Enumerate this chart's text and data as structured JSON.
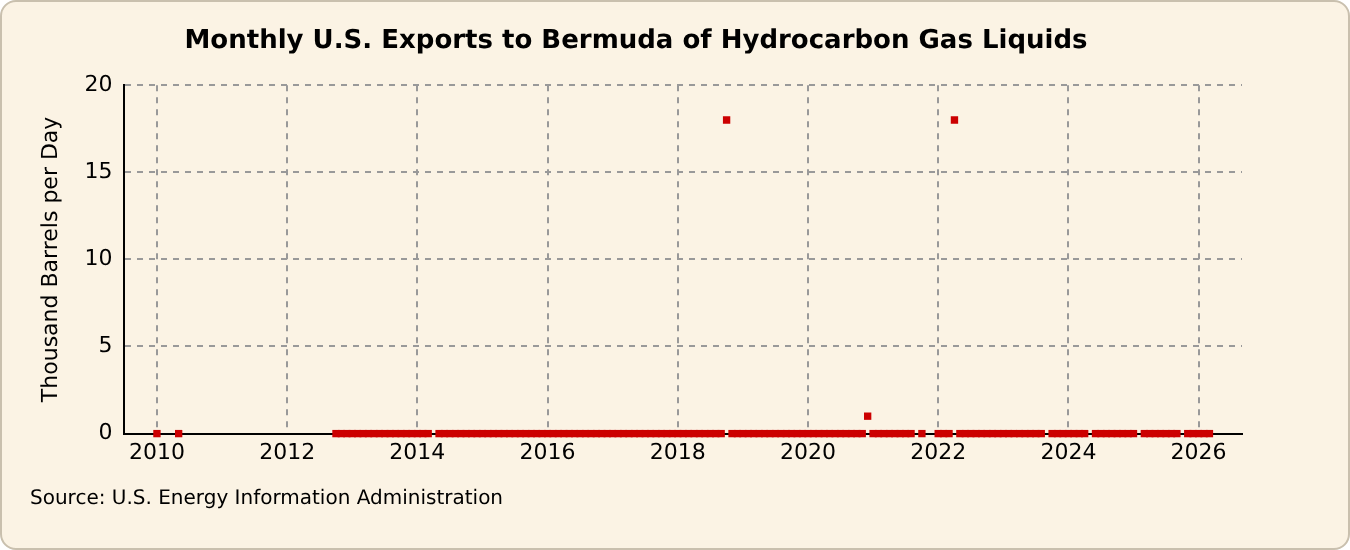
{
  "chart_data": {
    "type": "scatter",
    "title": "Monthly U.S. Exports to Bermuda of Hydrocarbon Gas Liquids",
    "ylabel": "Thousand Barrels per Day",
    "annotations": [
      "Source: U.S. Energy Information Administration"
    ],
    "xlim": [
      "2009-07",
      "2026-09"
    ],
    "xticks": [
      "2010",
      "2012",
      "2014",
      "2016",
      "2018",
      "2020",
      "2022",
      "2024",
      "2026"
    ],
    "ylim": [
      0,
      20
    ],
    "yticks": [
      0,
      5,
      10,
      15,
      20
    ],
    "grid": true,
    "legend": false,
    "marker": "square",
    "series": [
      {
        "color": "#cc0000",
        "x": [
          "2010-01",
          "2010-05",
          "2012-10",
          "2012-11",
          "2012-12",
          "2013-01",
          "2013-02",
          "2013-03",
          "2013-04",
          "2013-05",
          "2013-06",
          "2013-07",
          "2013-08",
          "2013-09",
          "2013-10",
          "2013-11",
          "2013-12",
          "2014-01",
          "2014-02",
          "2014-03",
          "2014-05",
          "2014-06",
          "2014-07",
          "2014-08",
          "2014-09",
          "2014-10",
          "2014-11",
          "2014-12",
          "2015-01",
          "2015-02",
          "2015-03",
          "2015-04",
          "2015-05",
          "2015-06",
          "2015-07",
          "2015-08",
          "2015-09",
          "2015-10",
          "2015-11",
          "2015-12",
          "2016-01",
          "2016-02",
          "2016-03",
          "2016-04",
          "2016-05",
          "2016-06",
          "2016-07",
          "2016-08",
          "2016-09",
          "2016-10",
          "2016-11",
          "2016-12",
          "2017-01",
          "2017-02",
          "2017-03",
          "2017-04",
          "2017-05",
          "2017-06",
          "2017-07",
          "2017-08",
          "2017-09",
          "2017-10",
          "2017-11",
          "2017-12",
          "2018-01",
          "2018-02",
          "2018-03",
          "2018-04",
          "2018-05",
          "2018-06",
          "2018-07",
          "2018-08",
          "2018-09",
          "2018-10",
          "2018-11",
          "2018-12",
          "2019-01",
          "2019-02",
          "2019-03",
          "2019-04",
          "2019-05",
          "2019-06",
          "2019-07",
          "2019-08",
          "2019-09",
          "2019-10",
          "2019-11",
          "2019-12",
          "2020-01",
          "2020-02",
          "2020-03",
          "2020-04",
          "2020-05",
          "2020-06",
          "2020-07",
          "2020-08",
          "2020-09",
          "2020-10",
          "2020-11",
          "2020-12",
          "2021-01",
          "2021-02",
          "2021-03",
          "2021-04",
          "2021-05",
          "2021-06",
          "2021-07",
          "2021-08",
          "2021-10",
          "2022-01",
          "2022-02",
          "2022-03",
          "2022-04",
          "2022-05",
          "2022-06",
          "2022-07",
          "2022-08",
          "2022-09",
          "2022-10",
          "2022-11",
          "2022-12",
          "2023-01",
          "2023-02",
          "2023-03",
          "2023-04",
          "2023-05",
          "2023-06",
          "2023-07",
          "2023-08",
          "2023-10",
          "2023-11",
          "2023-12",
          "2024-01",
          "2024-02",
          "2024-03",
          "2024-04",
          "2024-06",
          "2024-07",
          "2024-08",
          "2024-09",
          "2024-10",
          "2024-11",
          "2024-12",
          "2025-01",
          "2025-03",
          "2025-04",
          "2025-05",
          "2025-06",
          "2025-07",
          "2025-08",
          "2025-09",
          "2025-11",
          "2025-12",
          "2026-01",
          "2026-02",
          "2026-03"
        ],
        "values": [
          0,
          0,
          0,
          0,
          0,
          0,
          0,
          0,
          0,
          0,
          0,
          0,
          0,
          0,
          0,
          0,
          0,
          0,
          0,
          0,
          0,
          0,
          0,
          0,
          0,
          0,
          0,
          0,
          0,
          0,
          0,
          0,
          0,
          0,
          0,
          0,
          0,
          0,
          0,
          0,
          0,
          0,
          0,
          0,
          0,
          0,
          0,
          0,
          0,
          0,
          0,
          0,
          0,
          0,
          0,
          0,
          0,
          0,
          0,
          0,
          0,
          0,
          0,
          0,
          0,
          0,
          0,
          0,
          0,
          0,
          0,
          0,
          0,
          18,
          0,
          0,
          0,
          0,
          0,
          0,
          0,
          0,
          0,
          0,
          0,
          0,
          0,
          0,
          0,
          0,
          0,
          0,
          0,
          0,
          0,
          0,
          0,
          0,
          0,
          1,
          0,
          0,
          0,
          0,
          0,
          0,
          0,
          0,
          0,
          0,
          0,
          0,
          18,
          0,
          0,
          0,
          0,
          0,
          0,
          0,
          0,
          0,
          0,
          0,
          0,
          0,
          0,
          0,
          0,
          0,
          0,
          0,
          0,
          0,
          0,
          0,
          0,
          0,
          0,
          0,
          0,
          0,
          0,
          0,
          0,
          0,
          0,
          0,
          0,
          0,
          0,
          0,
          0,
          0,
          0,
          0
        ]
      }
    ]
  }
}
